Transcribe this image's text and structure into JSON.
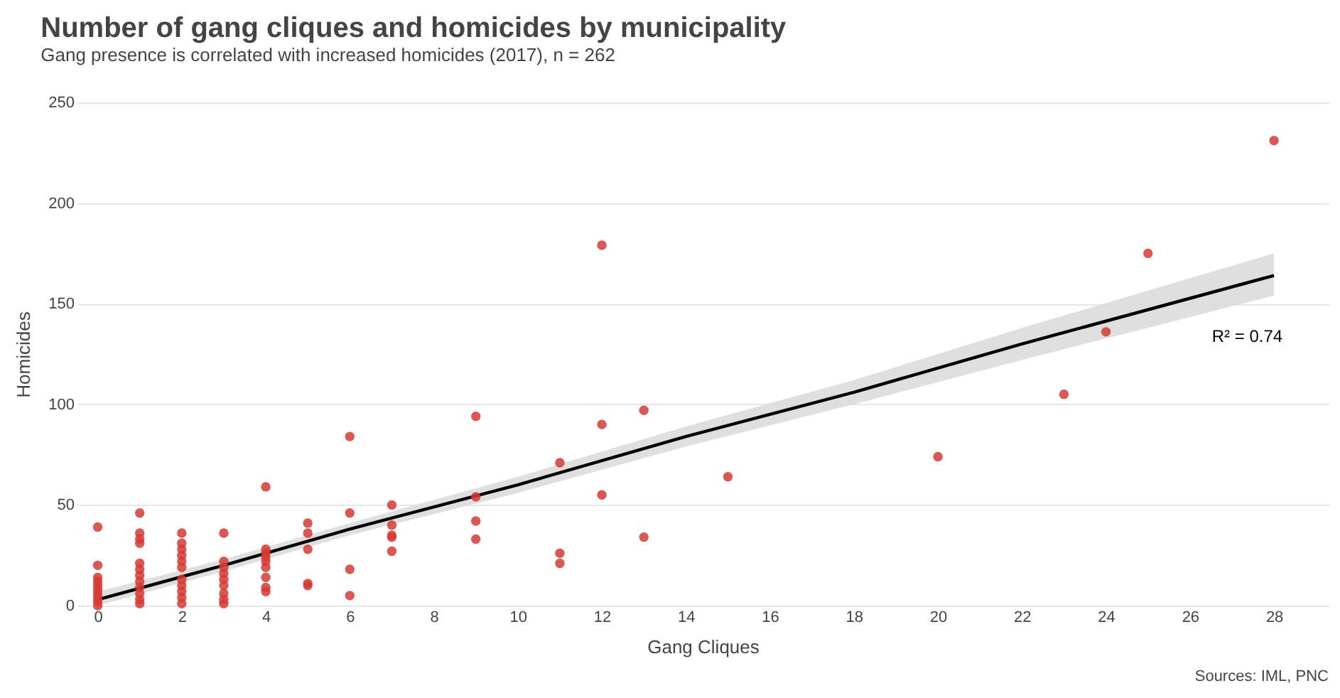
{
  "chart_data": {
    "type": "scatter",
    "title": "Number of gang cliques and homicides by municipality",
    "subtitle": "Gang presence is correlated with increased homicides (2017), n = 262",
    "xlabel": "Gang Cliques",
    "ylabel": "Homicides",
    "xlim": [
      -0.5,
      29.3
    ],
    "xticks": [
      0,
      2,
      4,
      6,
      8,
      10,
      12,
      14,
      16,
      18,
      20,
      22,
      24,
      26,
      28
    ],
    "ylim": [
      0,
      250
    ],
    "yticks": [
      0,
      50,
      100,
      150,
      200,
      250
    ],
    "grid": "y",
    "series": [
      {
        "type": "line",
        "marker": "none",
        "color": "#000000",
        "x": [
          0,
          3,
          6,
          10,
          14,
          18,
          22,
          28
        ],
        "values": [
          3,
          20,
          38,
          60,
          84,
          106,
          130,
          164
        ],
        "lower": [
          0,
          17,
          35,
          56,
          79,
          100,
          122,
          154
        ],
        "upper": [
          7,
          23,
          41,
          64,
          89,
          112,
          138,
          175
        ]
      },
      {
        "marker": "circle",
        "color": "#d63a33",
        "x": [
          0,
          0,
          0,
          0,
          0,
          0,
          0,
          0,
          0,
          0,
          1,
          1,
          1,
          1,
          1,
          1,
          1,
          1,
          1,
          1,
          1,
          1,
          2,
          2,
          2,
          2,
          2,
          2,
          2,
          2,
          2,
          2,
          2,
          3,
          3,
          3,
          3,
          3,
          3,
          3,
          3,
          3,
          4,
          4,
          4,
          4,
          4,
          4,
          4,
          4,
          4,
          5,
          5,
          5,
          5,
          5,
          6,
          6,
          6,
          6,
          7,
          7,
          7,
          7,
          7,
          9,
          9,
          9,
          9,
          11,
          11,
          11,
          12,
          12,
          12,
          13,
          13,
          15,
          20,
          23,
          24,
          25,
          28
        ],
        "values": [
          39,
          20,
          14,
          12,
          10,
          8,
          6,
          4,
          2,
          0,
          46,
          36,
          33,
          31,
          21,
          18,
          15,
          12,
          9,
          6,
          3,
          1,
          36,
          31,
          28,
          25,
          22,
          19,
          13,
          10,
          7,
          4,
          1,
          36,
          22,
          19,
          16,
          13,
          10,
          6,
          3,
          1,
          59,
          28,
          26,
          24,
          22,
          19,
          14,
          9,
          7,
          41,
          36,
          28,
          11,
          10,
          84,
          46,
          18,
          5,
          50,
          40,
          35,
          34,
          27,
          94,
          54,
          42,
          33,
          71,
          26,
          21,
          179,
          90,
          55,
          97,
          34,
          64,
          74,
          105,
          136,
          175,
          231
        ]
      }
    ],
    "annotations": [
      "R² = 0.74",
      "Sources: IML, PNC"
    ]
  }
}
